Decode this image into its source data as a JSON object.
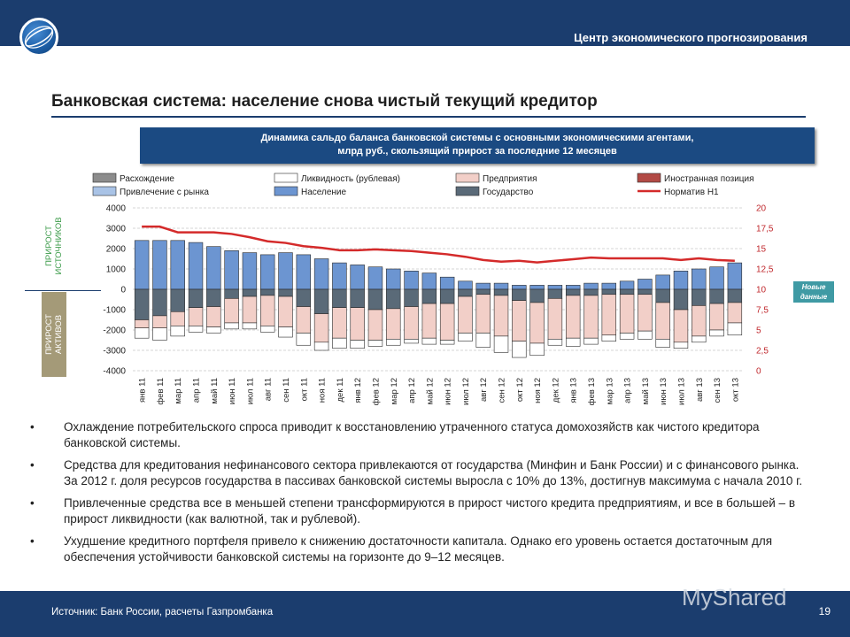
{
  "header": {
    "org_name": "Центр экономического прогнозирования",
    "title": "Банковская система: население снова чистый текущий кредитор",
    "colors": {
      "bar": "#1b3d6e",
      "accent": "#c0282d"
    }
  },
  "chart_banner": {
    "line1": "Динамика сальдо баланса банковской системы с основными экономическими агентами,",
    "line2": "млрд руб., скользящий прирост за последние 12 месяцев"
  },
  "side_labels": {
    "top": "ПРИРОСТ ИСТОЧНИКОВ",
    "top_line1": "ПРИРОСТ",
    "top_line2": "ИСТОЧНИКОВ",
    "bottom_line1": "ПРИРОСТ",
    "bottom_line2": "АКТИВОВ"
  },
  "new_data_badge": {
    "line1": "Новые",
    "line2": "данные"
  },
  "chart_data": {
    "type": "bar",
    "stacked": true,
    "categories": [
      "янв 11",
      "фев 11",
      "мар 11",
      "апр 11",
      "май 11",
      "июн 11",
      "июл 11",
      "авг 11",
      "сен 11",
      "окт 11",
      "ноя 11",
      "дек 11",
      "янв 12",
      "фев 12",
      "мар 12",
      "апр 12",
      "май 12",
      "июн 12",
      "июл 12",
      "авг 12",
      "сен 12",
      "окт 12",
      "ноя 12",
      "дек 12",
      "янв 13",
      "фев 13",
      "мар 13",
      "апр 13",
      "май 13",
      "июн 13",
      "июл 13",
      "авг 13",
      "сен 13",
      "окт 13"
    ],
    "ylim": [
      -4000,
      4000
    ],
    "y_ticks": [
      4000,
      3000,
      2000,
      1000,
      0,
      -1000,
      -2000,
      -3000,
      -4000
    ],
    "y2lim": [
      0,
      20
    ],
    "y2_ticks": [
      "20",
      "17,5",
      "15",
      "12,5",
      "10",
      "7,5",
      "5",
      "2,5",
      "0"
    ],
    "legend": [
      {
        "name": "Расхождение",
        "color": "#8c8c8c"
      },
      {
        "name": "Ликвидность (рублевая)",
        "color": "#ffffff"
      },
      {
        "name": "Предприятия",
        "color": "#f2cfc8"
      },
      {
        "name": "Иностранная позиция",
        "color": "#b24a45"
      },
      {
        "name": "Привлечение с рынка",
        "color": "#a9c3e6"
      },
      {
        "name": "Население",
        "color": "#6c95d1"
      },
      {
        "name": "Государство",
        "color": "#5a6a78"
      },
      {
        "name": "Норматив Н1",
        "color": "#d42a2a"
      }
    ],
    "series": [
      {
        "name": "Государство",
        "values": [
          -1500,
          -1300,
          -1100,
          -900,
          -850,
          -450,
          -350,
          -300,
          -350,
          -850,
          -1200,
          -900,
          -900,
          -1000,
          -950,
          -850,
          -700,
          -700,
          -350,
          -250,
          -300,
          -550,
          -650,
          -450,
          -300,
          -300,
          -250,
          -250,
          -250,
          -650,
          -1000,
          -800,
          -700,
          -650
        ]
      },
      {
        "name": "Население",
        "values": [
          2400,
          2400,
          2400,
          2300,
          2100,
          1900,
          1800,
          1700,
          1800,
          1700,
          1500,
          1300,
          1200,
          1100,
          1000,
          900,
          800,
          600,
          400,
          300,
          300,
          200,
          200,
          200,
          200,
          300,
          300,
          400,
          500,
          700,
          900,
          1000,
          1100,
          1300
        ]
      },
      {
        "name": "Предприятия",
        "values": [
          -400,
          -600,
          -700,
          -900,
          -1000,
          -1200,
          -1300,
          -1500,
          -1500,
          -1300,
          -1400,
          -1500,
          -1600,
          -1500,
          -1500,
          -1600,
          -1700,
          -1800,
          -1800,
          -1900,
          -2000,
          -2000,
          -2000,
          -2000,
          -2100,
          -2100,
          -2000,
          -1900,
          -1800,
          -1800,
          -1600,
          -1500,
          -1300,
          -1000
        ]
      },
      {
        "name": "Ликвидность (рублевая)",
        "values": [
          -500,
          -600,
          -500,
          -300,
          -300,
          -300,
          -300,
          -300,
          -500,
          -600,
          -400,
          -500,
          -400,
          -300,
          -300,
          -200,
          -300,
          -200,
          -400,
          -700,
          -800,
          -800,
          -600,
          -300,
          -400,
          -300,
          -300,
          -300,
          -400,
          -400,
          -300,
          -300,
          -300,
          -600
        ]
      }
    ],
    "line_series": {
      "name": "Норматив Н1",
      "axis": "right",
      "values": [
        17.7,
        17.7,
        17.0,
        17.0,
        17.0,
        16.8,
        16.4,
        15.9,
        15.7,
        15.3,
        15.1,
        14.8,
        14.8,
        14.9,
        14.8,
        14.7,
        14.5,
        14.3,
        14.0,
        13.6,
        13.4,
        13.5,
        13.3,
        13.5,
        13.7,
        13.9,
        13.8,
        13.8,
        13.8,
        13.8,
        13.6,
        13.8,
        13.6,
        13.5
      ]
    }
  },
  "bullets": [
    "Охлаждение потребительского спроса приводит к восстановлению утраченного статуса домохозяйств как чистого кредитора банковской системы.",
    "Средства для кредитования нефинансового сектора привлекаются от государства (Минфин и Банк России) и с финансового рынка. За 2012 г. доля ресурсов государства в пассивах банковской системы выросла с 10% до 13%, достигнув максимума с начала 2010 г.",
    "Привлеченные средства все в меньшей степени трансформируются в прирост чистого кредита предприятиям, и все в большей – в прирост ликвидности (как валютной, так и рублевой).",
    "Ухудшение кредитного портфеля привело к снижению достаточности капитала. Однако его уровень остается достаточным для обеспечения устойчивости банковской системы на горизонте до 9–12 месяцев."
  ],
  "footer": {
    "source": "Источник: Банк России, расчеты Газпромбанка",
    "page_number": "19",
    "watermark": "MyShared"
  }
}
